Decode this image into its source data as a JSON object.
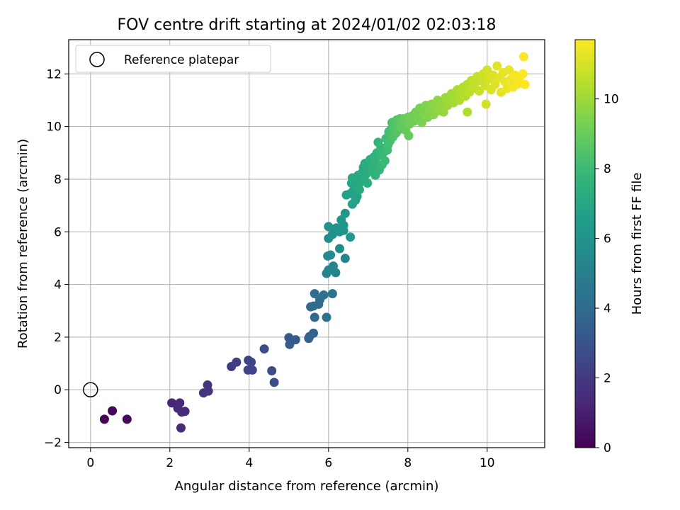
{
  "chart_data": {
    "type": "scatter",
    "title": "FOV centre drift starting at 2024/01/02 02:03:18",
    "xlabel": "Angular distance from reference (arcmin)",
    "ylabel": "Rotation from reference (arcmin)",
    "xlim": [
      -0.55,
      11.45
    ],
    "ylim": [
      -2.2,
      13.3
    ],
    "xticks": [
      0,
      2,
      4,
      6,
      8,
      10
    ],
    "yticks": [
      -2,
      0,
      2,
      4,
      6,
      8,
      10,
      12
    ],
    "grid": true,
    "legend": {
      "location": "upper-left",
      "entries": [
        {
          "label": "Reference platepar",
          "marker": "open-circle"
        }
      ]
    },
    "reference_point": {
      "x": 0,
      "y": 0
    },
    "colorbar": {
      "label": "Hours from first FF file",
      "colormap": "viridis",
      "range": [
        0,
        11.7
      ],
      "ticks": [
        0,
        2,
        4,
        6,
        8,
        10
      ]
    },
    "colors": [
      "#440154",
      "#482878",
      "#3e4989",
      "#31688e",
      "#26828e",
      "#1f9e89",
      "#35b779",
      "#6ece58",
      "#b5de2b",
      "#fde725"
    ],
    "series": [
      {
        "points": [
          [
            0.35,
            -1.12,
            0.1
          ],
          [
            0.55,
            -0.8,
            0.2
          ],
          [
            0.92,
            -1.12,
            0.3
          ],
          [
            2.05,
            -0.5,
            1.2
          ],
          [
            2.2,
            -0.7,
            1.3
          ],
          [
            2.25,
            -0.5,
            1.35
          ],
          [
            2.3,
            -0.85,
            1.4
          ],
          [
            2.28,
            -1.45,
            1.45
          ],
          [
            2.38,
            -0.82,
            1.5
          ],
          [
            2.85,
            -0.12,
            1.7
          ],
          [
            2.95,
            0.18,
            1.75
          ],
          [
            2.97,
            -0.05,
            1.8
          ],
          [
            3.55,
            0.88,
            2.1
          ],
          [
            3.68,
            1.05,
            2.2
          ],
          [
            3.98,
            1.12,
            2.3
          ],
          [
            3.97,
            0.75,
            2.35
          ],
          [
            4.05,
            1.05,
            2.4
          ],
          [
            4.08,
            0.75,
            2.45
          ],
          [
            4.38,
            1.55,
            2.7
          ],
          [
            4.57,
            0.72,
            2.8
          ],
          [
            4.63,
            0.28,
            2.85
          ],
          [
            5.0,
            1.98,
            3.3
          ],
          [
            5.02,
            1.72,
            3.35
          ],
          [
            5.17,
            1.9,
            3.4
          ],
          [
            5.5,
            1.95,
            3.6
          ],
          [
            5.52,
            2.02,
            3.65
          ],
          [
            5.62,
            2.15,
            3.7
          ],
          [
            5.55,
            3.15,
            4.0
          ],
          [
            5.62,
            3.18,
            4.05
          ],
          [
            5.75,
            3.25,
            4.1
          ],
          [
            5.78,
            3.42,
            4.15
          ],
          [
            5.65,
            3.65,
            4.2
          ],
          [
            5.88,
            3.6,
            4.3
          ],
          [
            5.95,
            2.75,
            4.35
          ],
          [
            6.1,
            3.65,
            4.4
          ],
          [
            5.65,
            2.75,
            4.0
          ],
          [
            5.95,
            4.42,
            5.2
          ],
          [
            6.0,
            4.55,
            5.25
          ],
          [
            6.12,
            4.7,
            5.3
          ],
          [
            6.18,
            4.45,
            5.35
          ],
          [
            6.42,
            4.99,
            5.4
          ],
          [
            5.98,
            5.08,
            5.5
          ],
          [
            6.05,
            5.12,
            5.55
          ],
          [
            6.28,
            5.36,
            5.6
          ],
          [
            6.0,
            5.75,
            5.8
          ],
          [
            6.1,
            5.9,
            5.85
          ],
          [
            6.15,
            6.1,
            5.9
          ],
          [
            6.0,
            6.2,
            5.95
          ],
          [
            6.2,
            6.15,
            6.0
          ],
          [
            6.28,
            6.0,
            6.05
          ],
          [
            6.32,
            6.45,
            6.1
          ],
          [
            6.38,
            6.25,
            6.15
          ],
          [
            6.42,
            6.7,
            6.2
          ],
          [
            6.55,
            5.8,
            6.2
          ],
          [
            6.38,
            6.05,
            6.15
          ],
          [
            6.45,
            7.4,
            6.6
          ],
          [
            6.55,
            7.45,
            6.65
          ],
          [
            6.62,
            7.55,
            6.7
          ],
          [
            6.6,
            7.05,
            6.7
          ],
          [
            6.68,
            7.2,
            6.75
          ],
          [
            6.72,
            7.35,
            6.8
          ],
          [
            6.58,
            7.85,
            6.9
          ],
          [
            6.6,
            8.05,
            6.95
          ],
          [
            6.68,
            7.7,
            6.95
          ],
          [
            6.72,
            7.95,
            7.0
          ],
          [
            6.75,
            8.15,
            7.0
          ],
          [
            6.78,
            7.6,
            7.05
          ],
          [
            6.82,
            7.9,
            7.05
          ],
          [
            6.85,
            8.25,
            7.1
          ],
          [
            6.88,
            8.45,
            7.1
          ],
          [
            6.9,
            8.05,
            7.15
          ],
          [
            6.92,
            8.6,
            7.2
          ],
          [
            6.95,
            8.2,
            7.2
          ],
          [
            6.98,
            7.85,
            7.25
          ],
          [
            7.0,
            8.4,
            7.3
          ],
          [
            7.05,
            8.75,
            7.35
          ],
          [
            7.08,
            8.3,
            7.4
          ],
          [
            7.12,
            8.55,
            7.45
          ],
          [
            7.15,
            8.85,
            7.5
          ],
          [
            7.18,
            8.15,
            7.55
          ],
          [
            7.2,
            8.6,
            7.6
          ],
          [
            7.22,
            9.0,
            7.6
          ],
          [
            7.25,
            9.4,
            7.7
          ],
          [
            7.28,
            8.35,
            7.65
          ],
          [
            7.3,
            8.9,
            7.75
          ],
          [
            7.32,
            9.2,
            7.8
          ],
          [
            7.35,
            8.55,
            7.8
          ],
          [
            7.38,
            9.0,
            7.85
          ],
          [
            7.42,
            8.7,
            7.9
          ],
          [
            7.45,
            9.55,
            8.0
          ],
          [
            7.48,
            9.1,
            8.05
          ],
          [
            7.5,
            9.3,
            8.1
          ],
          [
            7.52,
            9.8,
            8.15
          ],
          [
            7.55,
            9.45,
            8.2
          ],
          [
            7.58,
            9.9,
            8.25
          ],
          [
            7.6,
            10.15,
            8.3
          ],
          [
            7.62,
            9.6,
            8.35
          ],
          [
            7.65,
            9.95,
            8.4
          ],
          [
            7.68,
            10.05,
            8.45
          ],
          [
            7.7,
            9.75,
            8.5
          ],
          [
            7.72,
            10.25,
            8.55
          ],
          [
            7.75,
            9.85,
            8.6
          ],
          [
            7.8,
            10.3,
            8.7
          ],
          [
            7.82,
            10.0,
            8.75
          ],
          [
            7.85,
            10.15,
            8.8
          ],
          [
            7.9,
            10.3,
            8.85
          ],
          [
            7.95,
            9.85,
            8.9
          ],
          [
            7.98,
            10.2,
            8.95
          ],
          [
            8.0,
            10.35,
            9.0
          ],
          [
            8.02,
            9.65,
            8.9
          ],
          [
            8.05,
            10.1,
            9.05
          ],
          [
            8.1,
            10.4,
            9.1
          ],
          [
            8.15,
            10.2,
            9.15
          ],
          [
            8.2,
            10.55,
            9.2
          ],
          [
            8.25,
            10.3,
            9.25
          ],
          [
            8.3,
            10.7,
            9.3
          ],
          [
            8.35,
            10.15,
            9.3
          ],
          [
            8.4,
            10.5,
            9.35
          ],
          [
            8.45,
            10.8,
            9.4
          ],
          [
            8.5,
            10.35,
            9.45
          ],
          [
            8.55,
            10.6,
            9.5
          ],
          [
            8.6,
            10.85,
            9.55
          ],
          [
            8.65,
            10.45,
            9.6
          ],
          [
            8.7,
            10.7,
            9.65
          ],
          [
            8.75,
            11.0,
            9.7
          ],
          [
            8.8,
            10.6,
            9.75
          ],
          [
            8.85,
            10.85,
            9.8
          ],
          [
            8.9,
            10.55,
            9.85
          ],
          [
            8.95,
            11.1,
            9.9
          ],
          [
            9.0,
            10.8,
            9.95
          ],
          [
            9.05,
            10.95,
            10.0
          ],
          [
            9.1,
            11.25,
            10.05
          ],
          [
            9.15,
            10.9,
            10.1
          ],
          [
            9.2,
            11.1,
            10.15
          ],
          [
            9.25,
            11.4,
            10.2
          ],
          [
            9.3,
            11.0,
            10.25
          ],
          [
            9.35,
            11.3,
            10.3
          ],
          [
            9.4,
            11.5,
            10.35
          ],
          [
            9.45,
            11.15,
            10.4
          ],
          [
            9.5,
            10.55,
            10.3
          ],
          [
            9.5,
            11.6,
            10.45
          ],
          [
            9.55,
            11.3,
            10.5
          ],
          [
            9.6,
            11.75,
            10.55
          ],
          [
            9.65,
            11.45,
            10.6
          ],
          [
            9.7,
            11.65,
            10.65
          ],
          [
            9.75,
            11.9,
            10.7
          ],
          [
            9.8,
            11.35,
            10.75
          ],
          [
            9.85,
            11.75,
            10.8
          ],
          [
            9.9,
            12.0,
            10.85
          ],
          [
            9.95,
            11.55,
            10.9
          ],
          [
            9.97,
            10.85,
            10.9
          ],
          [
            10.0,
            12.15,
            10.95
          ],
          [
            10.05,
            11.8,
            11.0
          ],
          [
            10.1,
            11.4,
            11.05
          ],
          [
            10.15,
            11.95,
            11.1
          ],
          [
            10.2,
            11.6,
            11.15
          ],
          [
            10.25,
            12.3,
            11.2
          ],
          [
            10.3,
            11.85,
            11.2
          ],
          [
            10.35,
            11.3,
            11.25
          ],
          [
            10.4,
            12.05,
            11.3
          ],
          [
            10.45,
            11.7,
            11.35
          ],
          [
            10.5,
            11.45,
            11.4
          ],
          [
            10.55,
            12.15,
            11.4
          ],
          [
            10.6,
            11.8,
            11.45
          ],
          [
            10.65,
            11.5,
            11.5
          ],
          [
            10.7,
            11.95,
            11.55
          ],
          [
            10.75,
            11.6,
            11.55
          ],
          [
            10.8,
            11.85,
            11.6
          ],
          [
            10.85,
            11.65,
            11.62
          ],
          [
            10.9,
            12.0,
            11.65
          ],
          [
            10.92,
            12.65,
            11.7
          ],
          [
            10.95,
            11.6,
            11.7
          ]
        ]
      }
    ]
  }
}
